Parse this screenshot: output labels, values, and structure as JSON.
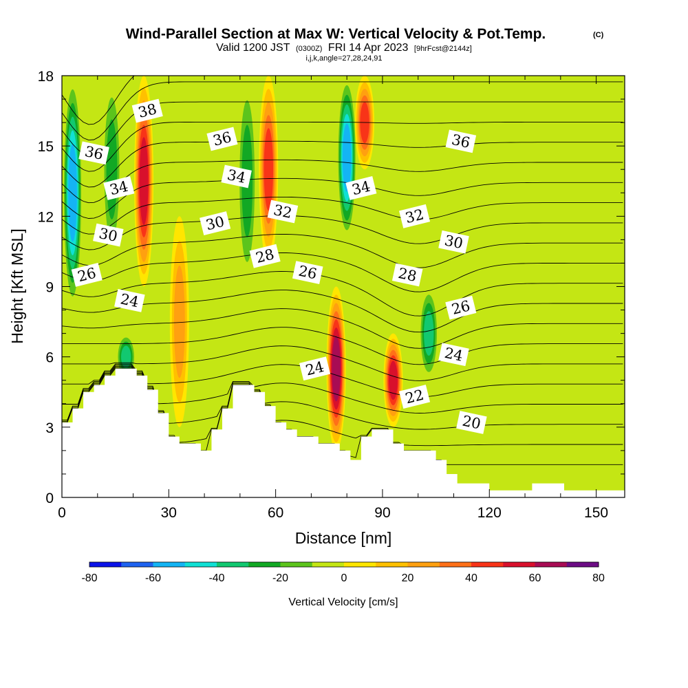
{
  "chart_data": {
    "type": "heatmap",
    "title": "Wind-Parallel Section at Max W: Vertical Velocity & Pot.Temp.",
    "title_mark": "(C)",
    "subtitle": {
      "valid": "Valid 1200 JST",
      "utc": "(0300Z)",
      "date": "FRI 14 Apr 2023",
      "forecast": "[9hrFcst@2144z]"
    },
    "section_params": "i,j,k,angle=27,28,24,91",
    "xlabel": "Distance [nm]",
    "ylabel": "Height [Kft MSL]",
    "xlim": [
      0,
      158
    ],
    "ylim": [
      0,
      18
    ],
    "x_ticks": [
      "0",
      "30",
      "60",
      "90",
      "120",
      "150"
    ],
    "y_ticks": [
      "0",
      "3",
      "6",
      "9",
      "12",
      "15",
      "18"
    ],
    "colorbar": {
      "label": "Vertical Velocity [cm/s]",
      "ticks": [
        "-80",
        "-60",
        "-40",
        "-20",
        "0",
        "20",
        "40",
        "60",
        "80"
      ],
      "colors": [
        "#0b13e8",
        "#1f63f0",
        "#14b4f4",
        "#10e0d4",
        "#12c870",
        "#12a824",
        "#5cc41c",
        "#c4e614",
        "#ffe600",
        "#ffc000",
        "#ffa010",
        "#ff7018",
        "#f83418",
        "#d8102c",
        "#a80c54",
        "#6c0c84"
      ]
    },
    "vertical_velocity_features": [
      {
        "x": 3,
        "y_range": [
          8,
          18
        ],
        "w": -60
      },
      {
        "x": 14,
        "y_range": [
          10,
          18
        ],
        "w": -25
      },
      {
        "x": 23,
        "y_range": [
          9,
          18
        ],
        "w": 55
      },
      {
        "x": 33,
        "y_range": [
          3,
          12
        ],
        "w": 25
      },
      {
        "x": 52,
        "y_range": [
          9,
          18
        ],
        "w": -25
      },
      {
        "x": 58,
        "y_range": [
          10,
          18
        ],
        "w": 45
      },
      {
        "x": 77,
        "y_range": [
          2,
          9
        ],
        "w": 70
      },
      {
        "x": 80,
        "y_range": [
          11,
          18
        ],
        "w": -60
      },
      {
        "x": 85,
        "y_range": [
          14,
          18
        ],
        "w": 45
      },
      {
        "x": 93,
        "y_range": [
          3,
          7
        ],
        "w": 60
      },
      {
        "x": 103,
        "y_range": [
          5,
          9
        ],
        "w": -35
      },
      {
        "x": 18,
        "y_range": [
          5,
          7
        ],
        "w": -40
      }
    ],
    "terrain_kft": {
      "x": [
        0,
        3,
        6,
        9,
        12,
        15,
        18,
        21,
        24,
        27,
        30,
        33,
        36,
        39,
        42,
        45,
        48,
        51,
        54,
        57,
        60,
        63,
        66,
        69,
        72,
        75,
        78,
        81,
        84,
        87,
        90,
        93,
        96,
        99,
        102,
        105,
        108,
        111,
        114,
        117,
        120,
        123,
        126,
        129,
        132,
        135,
        138,
        141,
        144,
        147,
        150,
        153,
        156,
        158
      ],
      "h": [
        3.2,
        3.8,
        4.5,
        4.8,
        5.2,
        5.5,
        5.5,
        5.2,
        4.6,
        3.6,
        2.6,
        2.3,
        2.3,
        2.0,
        2.9,
        3.8,
        4.8,
        4.8,
        4.5,
        3.9,
        3.2,
        2.9,
        2.6,
        2.6,
        2.3,
        2.3,
        2.0,
        1.6,
        2.6,
        2.9,
        2.9,
        2.3,
        2.0,
        2.0,
        2.0,
        1.6,
        1.0,
        0.6,
        0.6,
        0.6,
        0.3,
        0.3,
        0.3,
        0.3,
        0.6,
        0.6,
        0.6,
        0.3,
        0.3,
        0.3,
        0.3,
        0.3,
        0.3,
        0.3
      ]
    },
    "theta_contour_labels": [
      "38",
      "36",
      "36",
      "36",
      "34",
      "34",
      "34",
      "32",
      "32",
      "30",
      "30",
      "30",
      "28",
      "28",
      "26",
      "26",
      "26",
      "24",
      "24",
      "24",
      "22",
      "20"
    ]
  }
}
